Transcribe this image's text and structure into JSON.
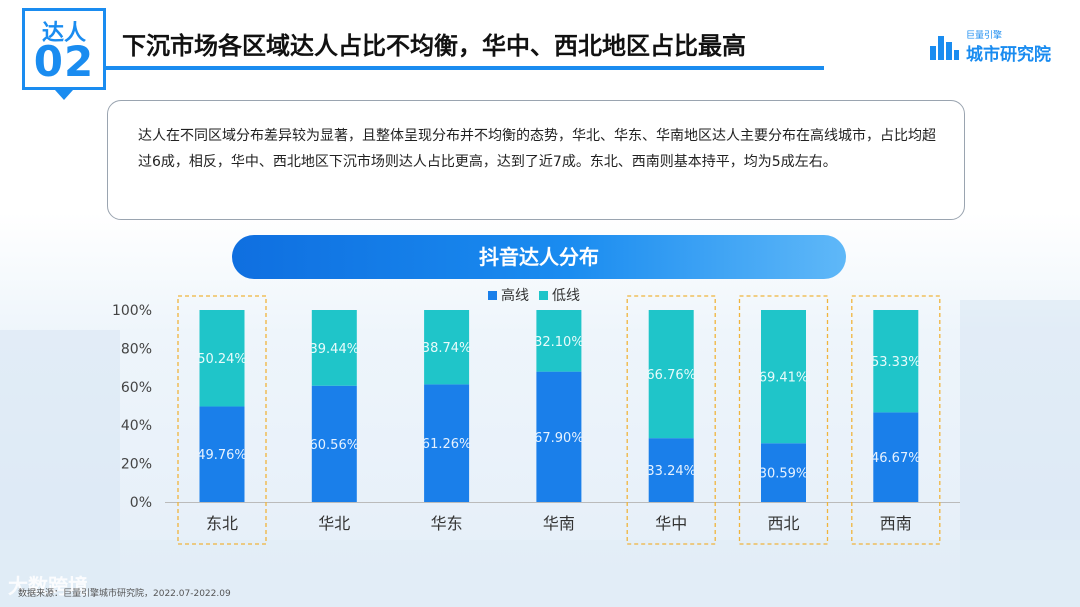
{
  "badge": {
    "top": "达人",
    "number": "02"
  },
  "title": "下沉市场各区域达人占比不均衡，华中、西北地区占比最高",
  "logo": {
    "small": "巨量引擎",
    "main": "城市研究院"
  },
  "description": "达人在不同区域分布差异较为显著，且整体呈现分布并不均衡的态势，华北、华东、华南地区达人主要分布在高线城市，占比均超过6成，相反，华中、西北地区下沉市场则达人占比更高，达到了近7成。东北、西南则基本持平，均为5成左右。",
  "footer": "数据来源：巨量引擎城市研究院，2022.07-2022.09",
  "watermark": "大数跨境",
  "colors": {
    "high": "#1a7fea",
    "low": "#1fc5c9",
    "accent": "#1a8cf0",
    "highlight_border": "#f0b43c"
  },
  "chart_data": {
    "type": "bar",
    "stacked": true,
    "title": "抖音达人分布",
    "categories": [
      "东北",
      "华北",
      "华东",
      "华南",
      "华中",
      "西北",
      "西南"
    ],
    "series": [
      {
        "name": "高线",
        "values": [
          49.76,
          60.56,
          61.26,
          67.9,
          33.24,
          30.59,
          46.67
        ],
        "labels": [
          "49.76%",
          "60.56%",
          "61.26%",
          "67.90%",
          "33.24%",
          "30.59%",
          "46.67%"
        ]
      },
      {
        "name": "低线",
        "values": [
          50.24,
          39.44,
          38.74,
          32.1,
          66.76,
          69.41,
          53.33
        ],
        "labels": [
          "50.24%",
          "39.44%",
          "38.74%",
          "32.10%",
          "66.76%",
          "69.41%",
          "53.33%"
        ]
      }
    ],
    "ylim": [
      0,
      100
    ],
    "yticks": [
      "0%",
      "20%",
      "40%",
      "60%",
      "80%",
      "100%"
    ],
    "highlighted": [
      "东北",
      "华中",
      "西北",
      "西南"
    ],
    "legend_position": "top-center",
    "grid": false
  }
}
